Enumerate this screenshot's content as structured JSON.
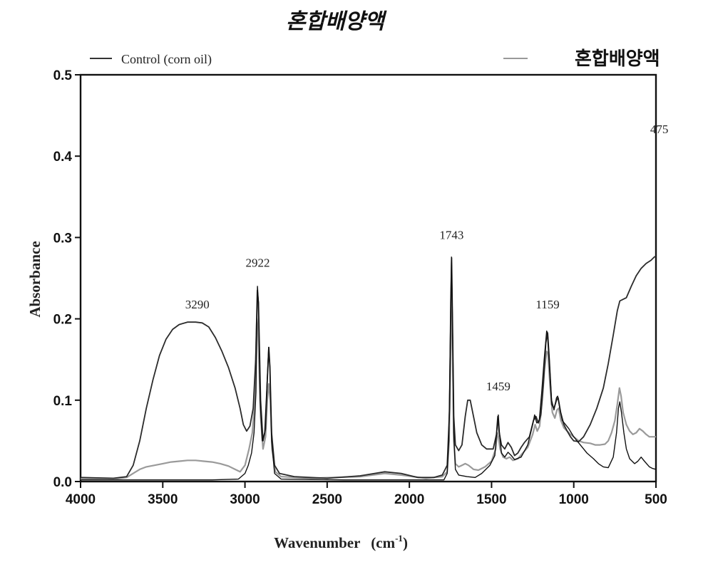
{
  "chart_data": {
    "type": "line",
    "title": "혼합배양액",
    "xlabel": "Wavenumber",
    "xlabel_unit": "(cm",
    "xlabel_exp": "-1",
    "xlabel_close": ")",
    "ylabel": "Absorbance",
    "xlim": [
      4000,
      500
    ],
    "ylim": [
      0.0,
      0.5
    ],
    "x_ticks": [
      4000,
      3500,
      3000,
      2500,
      2000,
      1500,
      1000,
      500
    ],
    "x_tick_labels": [
      "4000",
      "3500",
      "3000",
      "2500",
      "2000",
      "1500",
      "1000",
      "500"
    ],
    "y_ticks": [
      0.0,
      0.1,
      0.2,
      0.3,
      0.4,
      0.5
    ],
    "y_tick_labels": [
      "0.0",
      "0.1",
      "0.2",
      "0.3",
      "0.4",
      "0.5"
    ],
    "grid": false,
    "legend": [
      {
        "label": "Control (corn oil)",
        "color": "#333333"
      },
      {
        "label": "혼합배양액",
        "color": "#999999"
      }
    ],
    "annotations": [
      {
        "text": "3290",
        "x": 3290,
        "y": 0.213
      },
      {
        "text": "2922",
        "x": 2922,
        "y": 0.264
      },
      {
        "text": "1743",
        "x": 1743,
        "y": 0.298
      },
      {
        "text": "1459",
        "x": 1459,
        "y": 0.112
      },
      {
        "text": "1159",
        "x": 1159,
        "y": 0.213
      },
      {
        "text": "475",
        "x": 480,
        "y": 0.428
      }
    ],
    "series": [
      {
        "color": "#2b2b2b",
        "width": 1.8,
        "points": [
          [
            4000,
            0.005
          ],
          [
            3800,
            0.004
          ],
          [
            3720,
            0.006
          ],
          [
            3680,
            0.02
          ],
          [
            3640,
            0.05
          ],
          [
            3600,
            0.09
          ],
          [
            3560,
            0.125
          ],
          [
            3520,
            0.155
          ],
          [
            3480,
            0.175
          ],
          [
            3440,
            0.187
          ],
          [
            3400,
            0.193
          ],
          [
            3350,
            0.196
          ],
          [
            3300,
            0.196
          ],
          [
            3260,
            0.195
          ],
          [
            3220,
            0.19
          ],
          [
            3180,
            0.177
          ],
          [
            3140,
            0.16
          ],
          [
            3100,
            0.14
          ],
          [
            3060,
            0.115
          ],
          [
            3030,
            0.09
          ],
          [
            3010,
            0.07
          ],
          [
            2990,
            0.062
          ],
          [
            2970,
            0.068
          ],
          [
            2950,
            0.09
          ],
          [
            2935,
            0.15
          ],
          [
            2925,
            0.235
          ],
          [
            2918,
            0.22
          ],
          [
            2905,
            0.1
          ],
          [
            2890,
            0.05
          ],
          [
            2875,
            0.065
          ],
          [
            2865,
            0.12
          ],
          [
            2855,
            0.165
          ],
          [
            2848,
            0.14
          ],
          [
            2838,
            0.06
          ],
          [
            2820,
            0.02
          ],
          [
            2790,
            0.01
          ],
          [
            2700,
            0.006
          ],
          [
            2500,
            0.004
          ],
          [
            2300,
            0.007
          ],
          [
            2150,
            0.012
          ],
          [
            2050,
            0.01
          ],
          [
            1950,
            0.005
          ],
          [
            1850,
            0.005
          ],
          [
            1800,
            0.008
          ],
          [
            1770,
            0.02
          ],
          [
            1755,
            0.09
          ],
          [
            1748,
            0.22
          ],
          [
            1743,
            0.275
          ],
          [
            1738,
            0.2
          ],
          [
            1730,
            0.08
          ],
          [
            1720,
            0.045
          ],
          [
            1700,
            0.038
          ],
          [
            1680,
            0.045
          ],
          [
            1660,
            0.08
          ],
          [
            1645,
            0.1
          ],
          [
            1630,
            0.1
          ],
          [
            1610,
            0.08
          ],
          [
            1590,
            0.06
          ],
          [
            1560,
            0.045
          ],
          [
            1530,
            0.04
          ],
          [
            1490,
            0.04
          ],
          [
            1470,
            0.058
          ],
          [
            1462,
            0.08
          ],
          [
            1455,
            0.062
          ],
          [
            1440,
            0.045
          ],
          [
            1420,
            0.04
          ],
          [
            1400,
            0.048
          ],
          [
            1380,
            0.042
          ],
          [
            1360,
            0.032
          ],
          [
            1340,
            0.035
          ],
          [
            1320,
            0.042
          ],
          [
            1300,
            0.048
          ],
          [
            1270,
            0.055
          ],
          [
            1245,
            0.075
          ],
          [
            1230,
            0.08
          ],
          [
            1215,
            0.072
          ],
          [
            1200,
            0.082
          ],
          [
            1185,
            0.12
          ],
          [
            1170,
            0.17
          ],
          [
            1160,
            0.183
          ],
          [
            1150,
            0.15
          ],
          [
            1135,
            0.095
          ],
          [
            1120,
            0.09
          ],
          [
            1105,
            0.1
          ],
          [
            1095,
            0.103
          ],
          [
            1080,
            0.085
          ],
          [
            1060,
            0.07
          ],
          [
            1040,
            0.062
          ],
          [
            1020,
            0.055
          ],
          [
            1000,
            0.05
          ],
          [
            970,
            0.049
          ],
          [
            940,
            0.055
          ],
          [
            900,
            0.07
          ],
          [
            860,
            0.09
          ],
          [
            820,
            0.115
          ],
          [
            790,
            0.145
          ],
          [
            760,
            0.18
          ],
          [
            735,
            0.21
          ],
          [
            720,
            0.222
          ],
          [
            700,
            0.224
          ],
          [
            680,
            0.226
          ],
          [
            650,
            0.24
          ],
          [
            620,
            0.253
          ],
          [
            590,
            0.262
          ],
          [
            560,
            0.268
          ],
          [
            530,
            0.272
          ],
          [
            510,
            0.276
          ],
          [
            500,
            0.277
          ]
        ]
      },
      {
        "color": "#111111",
        "width": 1.4,
        "points": [
          [
            4000,
            0.002
          ],
          [
            3200,
            0.002
          ],
          [
            3040,
            0.003
          ],
          [
            3000,
            0.01
          ],
          [
            2980,
            0.02
          ],
          [
            2960,
            0.035
          ],
          [
            2945,
            0.06
          ],
          [
            2933,
            0.11
          ],
          [
            2924,
            0.24
          ],
          [
            2918,
            0.22
          ],
          [
            2908,
            0.1
          ],
          [
            2895,
            0.05
          ],
          [
            2880,
            0.06
          ],
          [
            2866,
            0.12
          ],
          [
            2856,
            0.165
          ],
          [
            2848,
            0.14
          ],
          [
            2838,
            0.05
          ],
          [
            2820,
            0.01
          ],
          [
            2780,
            0.003
          ],
          [
            2400,
            0.002
          ],
          [
            1790,
            0.002
          ],
          [
            1770,
            0.01
          ],
          [
            1760,
            0.05
          ],
          [
            1750,
            0.19
          ],
          [
            1744,
            0.276
          ],
          [
            1738,
            0.2
          ],
          [
            1730,
            0.06
          ],
          [
            1720,
            0.015
          ],
          [
            1700,
            0.008
          ],
          [
            1650,
            0.006
          ],
          [
            1600,
            0.005
          ],
          [
            1560,
            0.01
          ],
          [
            1510,
            0.02
          ],
          [
            1480,
            0.032
          ],
          [
            1465,
            0.07
          ],
          [
            1459,
            0.082
          ],
          [
            1452,
            0.06
          ],
          [
            1440,
            0.035
          ],
          [
            1420,
            0.03
          ],
          [
            1400,
            0.036
          ],
          [
            1380,
            0.032
          ],
          [
            1360,
            0.027
          ],
          [
            1320,
            0.03
          ],
          [
            1280,
            0.045
          ],
          [
            1250,
            0.07
          ],
          [
            1238,
            0.082
          ],
          [
            1225,
            0.072
          ],
          [
            1210,
            0.075
          ],
          [
            1195,
            0.11
          ],
          [
            1180,
            0.15
          ],
          [
            1165,
            0.185
          ],
          [
            1158,
            0.182
          ],
          [
            1148,
            0.15
          ],
          [
            1135,
            0.1
          ],
          [
            1120,
            0.088
          ],
          [
            1105,
            0.103
          ],
          [
            1098,
            0.105
          ],
          [
            1085,
            0.09
          ],
          [
            1070,
            0.075
          ],
          [
            1050,
            0.07
          ],
          [
            1030,
            0.065
          ],
          [
            1000,
            0.055
          ],
          [
            960,
            0.045
          ],
          [
            920,
            0.035
          ],
          [
            880,
            0.028
          ],
          [
            850,
            0.022
          ],
          [
            820,
            0.018
          ],
          [
            790,
            0.017
          ],
          [
            760,
            0.03
          ],
          [
            740,
            0.06
          ],
          [
            728,
            0.09
          ],
          [
            720,
            0.098
          ],
          [
            710,
            0.085
          ],
          [
            695,
            0.06
          ],
          [
            680,
            0.04
          ],
          [
            660,
            0.028
          ],
          [
            630,
            0.022
          ],
          [
            610,
            0.025
          ],
          [
            590,
            0.03
          ],
          [
            570,
            0.025
          ],
          [
            540,
            0.018
          ],
          [
            520,
            0.016
          ],
          [
            500,
            0.015
          ]
        ]
      },
      {
        "color": "#9a9a9a",
        "width": 2.2,
        "points": [
          [
            4000,
            0.003
          ],
          [
            3800,
            0.003
          ],
          [
            3720,
            0.005
          ],
          [
            3680,
            0.01
          ],
          [
            3640,
            0.015
          ],
          [
            3600,
            0.018
          ],
          [
            3550,
            0.02
          ],
          [
            3500,
            0.022
          ],
          [
            3450,
            0.024
          ],
          [
            3400,
            0.025
          ],
          [
            3350,
            0.026
          ],
          [
            3300,
            0.026
          ],
          [
            3250,
            0.025
          ],
          [
            3200,
            0.024
          ],
          [
            3150,
            0.022
          ],
          [
            3100,
            0.019
          ],
          [
            3060,
            0.015
          ],
          [
            3030,
            0.012
          ],
          [
            3000,
            0.02
          ],
          [
            2975,
            0.04
          ],
          [
            2955,
            0.06
          ],
          [
            2940,
            0.1
          ],
          [
            2928,
            0.2
          ],
          [
            2920,
            0.185
          ],
          [
            2905,
            0.08
          ],
          [
            2890,
            0.04
          ],
          [
            2875,
            0.055
          ],
          [
            2864,
            0.1
          ],
          [
            2855,
            0.12
          ],
          [
            2846,
            0.1
          ],
          [
            2835,
            0.04
          ],
          [
            2815,
            0.012
          ],
          [
            2780,
            0.006
          ],
          [
            2600,
            0.004
          ],
          [
            2300,
            0.006
          ],
          [
            2150,
            0.01
          ],
          [
            2050,
            0.008
          ],
          [
            1900,
            0.004
          ],
          [
            1800,
            0.006
          ],
          [
            1770,
            0.012
          ],
          [
            1758,
            0.05
          ],
          [
            1750,
            0.15
          ],
          [
            1744,
            0.245
          ],
          [
            1738,
            0.17
          ],
          [
            1730,
            0.05
          ],
          [
            1720,
            0.022
          ],
          [
            1700,
            0.018
          ],
          [
            1680,
            0.02
          ],
          [
            1660,
            0.022
          ],
          [
            1640,
            0.02
          ],
          [
            1610,
            0.015
          ],
          [
            1580,
            0.014
          ],
          [
            1540,
            0.018
          ],
          [
            1500,
            0.025
          ],
          [
            1475,
            0.04
          ],
          [
            1465,
            0.06
          ],
          [
            1458,
            0.055
          ],
          [
            1448,
            0.04
          ],
          [
            1430,
            0.03
          ],
          [
            1410,
            0.028
          ],
          [
            1390,
            0.03
          ],
          [
            1370,
            0.026
          ],
          [
            1340,
            0.028
          ],
          [
            1310,
            0.035
          ],
          [
            1280,
            0.042
          ],
          [
            1250,
            0.058
          ],
          [
            1235,
            0.07
          ],
          [
            1222,
            0.062
          ],
          [
            1208,
            0.068
          ],
          [
            1192,
            0.1
          ],
          [
            1178,
            0.138
          ],
          [
            1165,
            0.16
          ],
          [
            1157,
            0.158
          ],
          [
            1145,
            0.12
          ],
          [
            1130,
            0.085
          ],
          [
            1115,
            0.078
          ],
          [
            1102,
            0.088
          ],
          [
            1092,
            0.09
          ],
          [
            1078,
            0.075
          ],
          [
            1060,
            0.066
          ],
          [
            1040,
            0.062
          ],
          [
            1020,
            0.058
          ],
          [
            1000,
            0.055
          ],
          [
            970,
            0.05
          ],
          [
            940,
            0.048
          ],
          [
            900,
            0.047
          ],
          [
            870,
            0.045
          ],
          [
            840,
            0.045
          ],
          [
            810,
            0.046
          ],
          [
            790,
            0.05
          ],
          [
            770,
            0.06
          ],
          [
            750,
            0.075
          ],
          [
            735,
            0.095
          ],
          [
            722,
            0.115
          ],
          [
            712,
            0.105
          ],
          [
            700,
            0.085
          ],
          [
            680,
            0.07
          ],
          [
            660,
            0.062
          ],
          [
            640,
            0.058
          ],
          [
            620,
            0.06
          ],
          [
            600,
            0.065
          ],
          [
            580,
            0.062
          ],
          [
            560,
            0.058
          ],
          [
            540,
            0.055
          ],
          [
            520,
            0.055
          ],
          [
            500,
            0.055
          ]
        ]
      }
    ]
  }
}
